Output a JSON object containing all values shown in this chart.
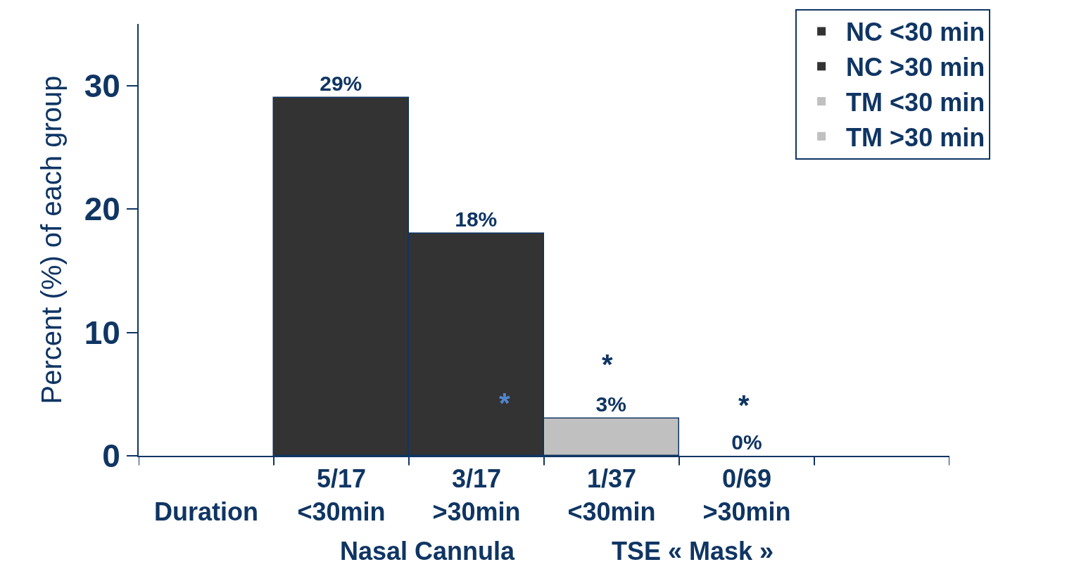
{
  "chart_data": {
    "type": "bar",
    "ylabel": "Percent (%) of each group",
    "categories": [
      "\nDuration",
      "5/17\n<30min",
      "3/17\n>30min",
      "1/37\n<30min",
      "0/69\n>30min",
      null
    ],
    "series": [
      {
        "name": "NC <30 min",
        "color": "#333333",
        "values": [
          null,
          29,
          null,
          null,
          null,
          null
        ],
        "value_labels": [
          null,
          "29%",
          null,
          null,
          null,
          null
        ]
      },
      {
        "name": "NC >30 min",
        "color": "#333333",
        "values": [
          null,
          null,
          18,
          null,
          null,
          null
        ],
        "value_labels": [
          null,
          null,
          "18%",
          null,
          null,
          null
        ]
      },
      {
        "name": "TM <30 min",
        "color": "#c0c0c0",
        "values": [
          null,
          null,
          null,
          3,
          null,
          null
        ],
        "value_labels": [
          null,
          null,
          null,
          "3%",
          null,
          null
        ]
      },
      {
        "name": "TM >30 min",
        "color": "#c0c0c0",
        "values": [
          null,
          null,
          null,
          null,
          0,
          null
        ],
        "value_labels": [
          null,
          null,
          null,
          null,
          "0%",
          null
        ]
      }
    ],
    "ylim": [
      0,
      35
    ],
    "yticks": [
      0,
      10,
      20,
      30
    ],
    "grid": false,
    "legend": "top right",
    "annotations": [
      "Nasal Cannula",
      "TSE « Mask »",
      "*",
      "*",
      "*"
    ]
  }
}
